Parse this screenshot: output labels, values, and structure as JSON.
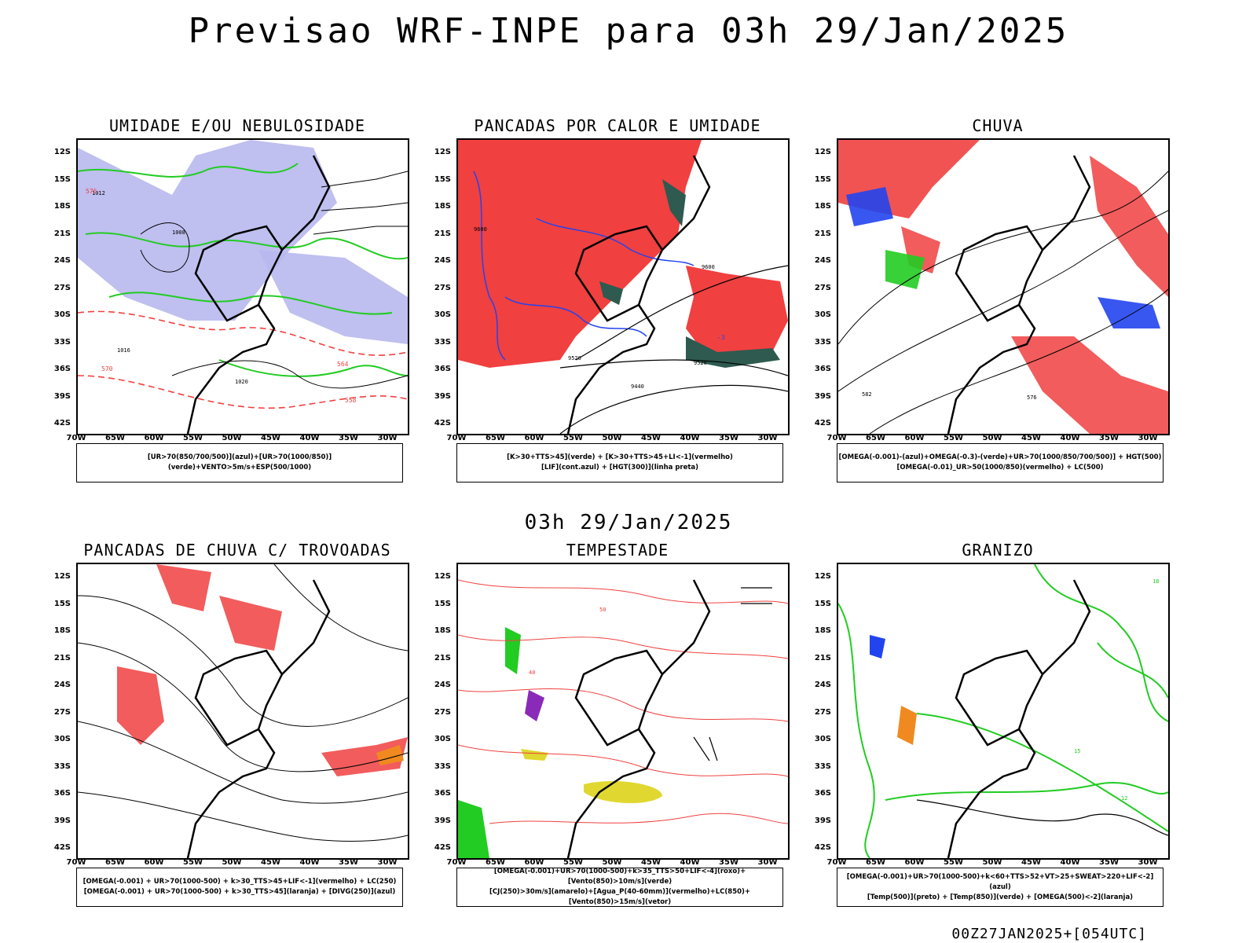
{
  "header": {
    "title": "Previsao WRF-INPE  para 03h 29/Jan/2025"
  },
  "mid_date": "03h 29/Jan/2025",
  "footer": "00Z27JAN2025+[054UTC]",
  "axes": {
    "lat_labels": [
      "12S",
      "15S",
      "18S",
      "21S",
      "24S",
      "27S",
      "30S",
      "33S",
      "36S",
      "39S",
      "42S"
    ],
    "lon_labels": [
      "70W",
      "65W",
      "60W",
      "55W",
      "50W",
      "45W",
      "40W",
      "35W",
      "30W"
    ]
  },
  "colors": {
    "red": "#f04040",
    "green": "#22cc22",
    "blue": "#2244ee",
    "lavender": "#b8b8ee",
    "darkteal": "#2e5a50",
    "yellow": "#e0d830",
    "orange": "#f08a20",
    "purple": "#8a2ab8",
    "black": "#000000"
  },
  "panels": [
    {
      "id": "umidade",
      "title": "UMIDADE E/OU NEBULOSIDADE",
      "legend": [
        "[UR>70(850/700/500)](azul)+[UR>70(1000/850)](verde)+VENTO>5m/s+ESP(500/1000)"
      ],
      "contour_labels": [
        "1012",
        "1008",
        "1016",
        "1020",
        "576",
        "570",
        "564",
        "558"
      ]
    },
    {
      "id": "pancadas",
      "title": "PANCADAS POR CALOR E UMIDADE",
      "legend": [
        "[K>30+TTS>45](verde) + [K>30+TTS>45+LI<-1](vermelho)",
        "[LIF](cont.azul) + [HGT(300)](linha preta)"
      ],
      "contour_labels": [
        "9600",
        "9560",
        "9520",
        "9440",
        "-3"
      ]
    },
    {
      "id": "chuva",
      "title": "CHUVA",
      "legend": [
        "[OMEGA(-0.001)-(azul)+OMEGA(-0.3)-(verde)+UR>70(1000/850/700/500)] + HGT(500)",
        "[OMEGA(-0.01)_UR>50(1000/850)(vermelho) + LC(500)"
      ],
      "contour_labels": [
        "582",
        "576"
      ]
    },
    {
      "id": "trovoadas",
      "title": "PANCADAS DE CHUVA C/ TROVOADAS",
      "legend": [
        "[OMEGA(-0.001) + UR>70(1000-500) + k>30_TTS>45+LIF<-1](vermelho) + LC(250)",
        "[OMEGA(-0.001) + UR>70(1000-500) + k>30_TTS>45](laranja) + [DIVG(250)](azul)"
      ],
      "contour_labels": []
    },
    {
      "id": "tempestade",
      "title": "TEMPESTADE",
      "legend": [
        "[OMEGA(-0.001)+UR>70(1000-500)+k>35_TTS>50+LIF<-4](roxo)+[Vento(850)>10m/s](verde)",
        "[CJ(250)>30m/s](amarelo)+[Agua_P(40-60mm)](vermelho)+LC(850)+[Vento(850)>15m/s](vetor)"
      ],
      "contour_labels": [
        "40",
        "50"
      ]
    },
    {
      "id": "granizo",
      "title": "GRANIZO",
      "legend": [
        "[OMEGA(-0.001)+UR>70(1000-500)+k<60+TTS>52+VT>25+SWEAT>220+LIF<-2](azul)",
        "[Temp(500)](preto) + [Temp(850)](verde) + [OMEGA(500)<-2](laranja)"
      ],
      "contour_labels": [
        "12",
        "15",
        "18"
      ]
    }
  ]
}
